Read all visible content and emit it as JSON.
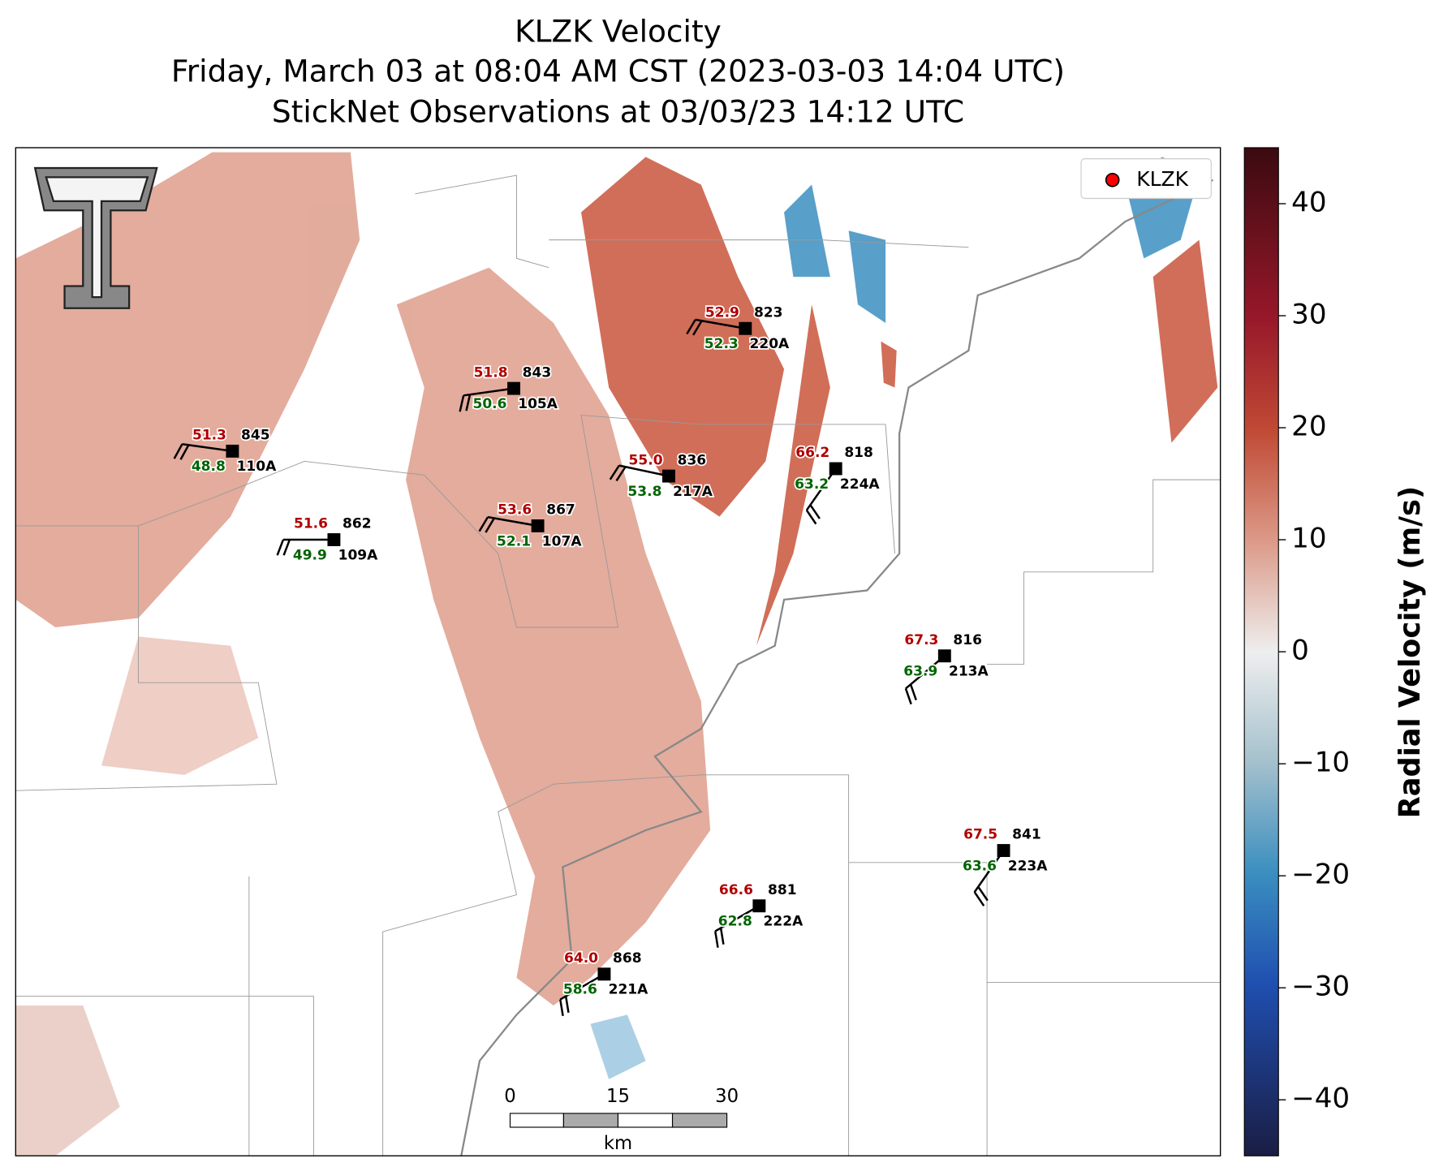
{
  "title": [
    "KLZK Velocity",
    "Friday, March 03 at 08:04 AM CST (2023-03-03 14:04 UTC)",
    "StickNet Observations at 03/03/23 14:12 UTC"
  ],
  "legend": {
    "label": "KLZK",
    "color": "#ff0000"
  },
  "scale_bar": {
    "labels": [
      "0",
      "15",
      "30"
    ],
    "unit": "km"
  },
  "colorbar": {
    "label": "Radial Velocity (m/s)",
    "lim": [
      -45,
      45
    ],
    "ticks": [
      40,
      30,
      20,
      10,
      0,
      {
        "value": -10,
        "label": "−10"
      },
      {
        "value": -20,
        "label": "−20"
      },
      {
        "value": -30,
        "label": "−30"
      },
      {
        "value": -40,
        "label": "−40"
      }
    ]
  },
  "stations": [
    {
      "temp": "51.3",
      "dew": "48.8",
      "id": "845",
      "code": "110A"
    },
    {
      "temp": "51.8",
      "dew": "50.6",
      "id": "843",
      "code": "105A"
    },
    {
      "temp": "52.9",
      "dew": "52.3",
      "id": "823",
      "code": "220A"
    },
    {
      "temp": "51.6",
      "dew": "49.9",
      "id": "862",
      "code": "109A"
    },
    {
      "temp": "53.6",
      "dew": "52.1",
      "id": "867",
      "code": "107A"
    },
    {
      "temp": "55.0",
      "dew": "53.8",
      "id": "836",
      "code": "217A"
    },
    {
      "temp": "66.2",
      "dew": "63.2",
      "id": "818",
      "code": "224A"
    },
    {
      "temp": "67.3",
      "dew": "63.9",
      "id": "816",
      "code": "213A"
    },
    {
      "temp": "67.5",
      "dew": "63.6",
      "id": "841",
      "code": "223A"
    },
    {
      "temp": "66.6",
      "dew": "62.8",
      "id": "881",
      "code": "222A"
    },
    {
      "temp": "64.0",
      "dew": "58.6",
      "id": "868",
      "code": "221A"
    }
  ]
}
